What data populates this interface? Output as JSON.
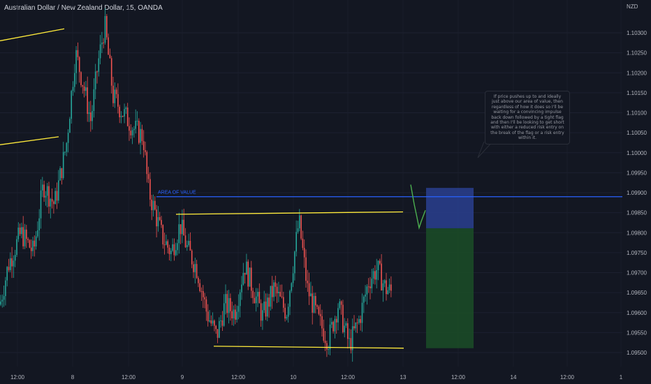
{
  "header": {
    "title": "Australian Dollar / New Zealand Dollar, 15, OANDA",
    "currency": "NZD"
  },
  "annotation": {
    "text": "If price pushes up to and ideally just above our area of value, then regardless of how it does so I'll be waiting for a convincing impulse back down followed by a tight flag and then I'll be looking to get short with either a reduced risk entry on the break of the flag or a risk entry within it."
  },
  "colors": {
    "background": "#131722",
    "bull": "#26a69a",
    "bear": "#ef5350",
    "trendline": "#ffeb3b",
    "level": "#2962ff",
    "stop_zone": "#2a3f8f",
    "target_zone": "#1b4d27",
    "projection": "#4caf50"
  },
  "chart_data": {
    "type": "candlestick",
    "title": "Australian Dollar / New Zealand Dollar, 15, OANDA",
    "y_unit": "NZD",
    "ylim": [
      1.0945,
      1.1036
    ],
    "y_ticks": [
      "1.10300",
      "1.10250",
      "1.10200",
      "1.10150",
      "1.10100",
      "1.10050",
      "1.10000",
      "1.09950",
      "1.09900",
      "1.09850",
      "1.09800",
      "1.09750",
      "1.09700",
      "1.09650",
      "1.09600",
      "1.09550",
      "1.09500"
    ],
    "x_ticks": [
      "12:00",
      "8",
      "12:00",
      "9",
      "12:00",
      "10",
      "12:00",
      "13",
      "12:00",
      "14",
      "12:00",
      "1"
    ],
    "price_path": [
      [
        0,
        1.0962
      ],
      [
        12,
        1.0972
      ],
      [
        30,
        1.098
      ],
      [
        48,
        1.0975
      ],
      [
        62,
        1.0992
      ],
      [
        78,
        1.0987
      ],
      [
        95,
        1.1002
      ],
      [
        108,
        1.1025
      ],
      [
        118,
        1.1018
      ],
      [
        130,
        1.1008
      ],
      [
        140,
        1.1022
      ],
      [
        150,
        1.1032
      ],
      [
        162,
        1.1014
      ],
      [
        176,
        1.101
      ],
      [
        192,
        1.1006
      ],
      [
        205,
        1.1004
      ],
      [
        212,
        1.0991
      ],
      [
        222,
        1.0985
      ],
      [
        232,
        1.0979
      ],
      [
        245,
        1.0975
      ],
      [
        258,
        1.0982
      ],
      [
        268,
        1.0976
      ],
      [
        282,
        1.0971
      ],
      [
        296,
        1.096
      ],
      [
        310,
        1.0954
      ],
      [
        322,
        1.0962
      ],
      [
        336,
        1.096
      ],
      [
        350,
        1.0972
      ],
      [
        362,
        1.0966
      ],
      [
        376,
        1.0959
      ],
      [
        392,
        1.0966
      ],
      [
        410,
        1.096
      ],
      [
        428,
        1.0983
      ],
      [
        440,
        1.0966
      ],
      [
        456,
        1.0958
      ],
      [
        470,
        1.0953
      ],
      [
        484,
        1.0962
      ],
      [
        500,
        1.0952
      ],
      [
        514,
        1.0958
      ],
      [
        528,
        1.0968
      ],
      [
        540,
        1.0971
      ],
      [
        552,
        1.0966
      ],
      [
        562,
        1.0965
      ]
    ],
    "levels": [
      {
        "label": "AREA OF VALUE",
        "price": 1.0989
      }
    ],
    "trendlines": [
      {
        "from": [
          0,
          1.1028
        ],
        "to": [
          92,
          1.1031
        ]
      },
      {
        "from": [
          0,
          1.1002
        ],
        "to": [
          84,
          1.1004
        ]
      },
      {
        "from": [
          252,
          1.09846
        ],
        "to": [
          577,
          1.09852
        ]
      },
      {
        "from": [
          306,
          1.09516
        ],
        "to": [
          578,
          1.09511
        ]
      }
    ],
    "position": {
      "side": "short",
      "entry": 1.09811,
      "stop": 1.09912,
      "target": 1.09511,
      "x_start": 610,
      "x_end": 678
    },
    "projection_path": [
      [
        588,
        1.0992
      ],
      [
        593,
        1.09871
      ],
      [
        597,
        1.09838
      ],
      [
        600,
        1.09812
      ],
      [
        603,
        1.09828
      ],
      [
        606,
        1.09842
      ],
      [
        609,
        1.09856
      ]
    ]
  }
}
